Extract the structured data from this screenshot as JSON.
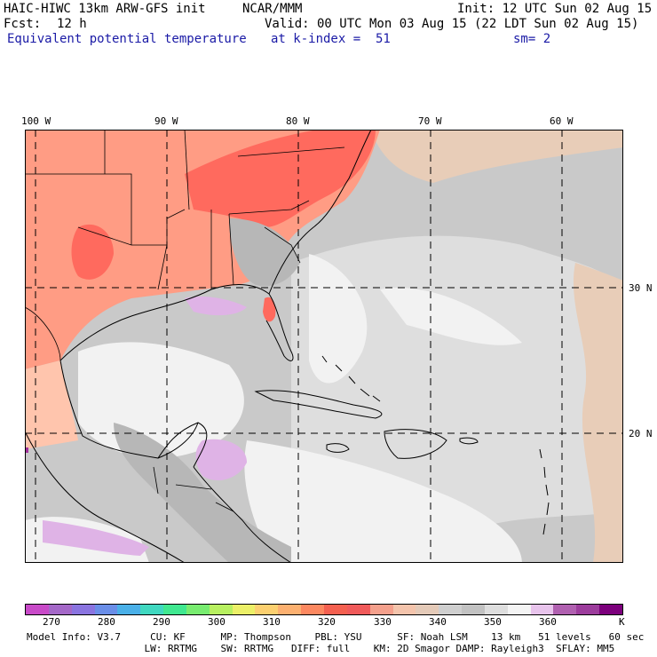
{
  "header": {
    "model": "HAIC-HIWC 13km ARW-GFS init",
    "center": "NCAR/MMM",
    "init": "Init: 12 UTC Sun 02 Aug 15",
    "fcst_label": "Fcst:",
    "fcst_value": "12 h",
    "valid": "Valid: 00 UTC Mon 03 Aug 15 (22 LDT Sun 02 Aug 15)",
    "field": "Equivalent potential temperature",
    "level": "at k-index =  51",
    "smooth": "sm= 2"
  },
  "map": {
    "lon_labels": [
      "100 W",
      "90 W",
      "80 W",
      "70 W",
      "60 W"
    ],
    "lat_labels": [
      "30 N",
      "20 N"
    ],
    "colors": {
      "warm_dark": "#ff6a5e",
      "warm_mid": "#ff9c84",
      "warm_light": "#ffc5ad",
      "tan": "#e8cdb8",
      "gray_dark": "#b7b7b7",
      "gray": "#c9c9c9",
      "gray_light": "#dedede",
      "white": "#f2f2f2",
      "lilac": "#dfb3e6",
      "purple": "#a1309b"
    }
  },
  "colorbar": {
    "colors": [
      "#c84ac8",
      "#a468c8",
      "#8a74e0",
      "#6a8ee8",
      "#4ab0e8",
      "#40d8c0",
      "#40e890",
      "#78ec70",
      "#b8f060",
      "#ecf068",
      "#fcd070",
      "#fcb070",
      "#fc8860",
      "#f46050",
      "#f05a5a",
      "#f4a08c",
      "#f4c4ac",
      "#e4cab8",
      "#cfcfcf",
      "#c2c2c2",
      "#dedede",
      "#f4f4f4",
      "#e8c4ec",
      "#b060b0",
      "#9c3c9c",
      "#7c007c"
    ],
    "ticks": [
      "270",
      "280",
      "290",
      "300",
      "310",
      "320",
      "330",
      "340",
      "350",
      "360"
    ],
    "unit": "K"
  },
  "footer": {
    "line1": "Model Info: V3.7     CU: KF      MP: Thompson    PBL: YSU      SF: Noah LSM    13 km   51 levels   60 sec",
    "line2": "                    LW: RRTMG    SW: RRTMG   DIFF: full    KM: 2D Smagor DAMP: Rayleigh3  SFLAY: MM5"
  }
}
